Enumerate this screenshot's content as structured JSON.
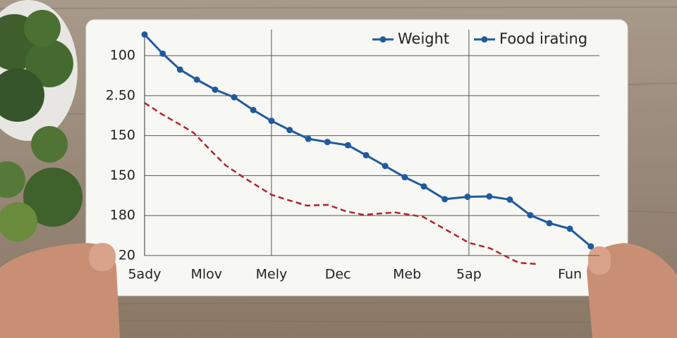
{
  "chart_data": {
    "type": "line",
    "xlim": [
      0,
      100
    ],
    "ylim": [
      -0.5,
      5.6
    ],
    "xticks": [
      {
        "value": 0,
        "label": "5ady"
      },
      {
        "value": 13.6,
        "label": "Mlov"
      },
      {
        "value": 27.9,
        "label": "Mely"
      },
      {
        "value": 42.5,
        "label": "Dec"
      },
      {
        "value": 57.7,
        "label": "Meb"
      },
      {
        "value": 71.3,
        "label": "5ap"
      },
      {
        "value": 93.5,
        "label": "Fun"
      }
    ],
    "xgrid": [
      27.9,
      71.3
    ],
    "yticks": [
      {
        "value": 0,
        "label": "20"
      },
      {
        "value": 1,
        "label": "180"
      },
      {
        "value": 2,
        "label": "150"
      },
      {
        "value": 3,
        "label": "150"
      },
      {
        "value": 4,
        "label": "2.50"
      },
      {
        "value": 5,
        "label": "100"
      }
    ],
    "grid": true,
    "legend": "top-right",
    "series": [
      {
        "name": "Weight",
        "color": "#1f5a9e",
        "legend_color": "#1f5a9e",
        "dashed": false,
        "markers": true,
        "x": [
          0,
          4.0,
          7.8,
          11.5,
          15.5,
          19.7,
          23.9,
          27.9,
          31.9,
          36.0,
          40.2,
          44.7,
          48.7,
          52.9,
          57.2,
          61.4,
          66.0,
          71.0,
          75.8,
          80.3,
          84.8,
          89.0,
          93.5,
          98.1
        ],
        "values": [
          5.53,
          5.05,
          4.65,
          4.4,
          4.15,
          3.96,
          3.64,
          3.37,
          3.14,
          2.92,
          2.84,
          2.76,
          2.51,
          2.24,
          1.96,
          1.73,
          1.41,
          1.47,
          1.48,
          1.4,
          1.01,
          0.81,
          0.67,
          0.23
        ]
      },
      {
        "name": "Food irating",
        "color": "#b0242c",
        "legend_color": "#1f5a9e",
        "dashed": true,
        "markers": false,
        "x": [
          0,
          3.9,
          8.5,
          10.9,
          14.7,
          17.8,
          21.7,
          27.9,
          31.8,
          35.7,
          40.3,
          44.2,
          48.1,
          55.0,
          61.2,
          65.9,
          71.3,
          76.0,
          79.8,
          82.2,
          86.0
        ],
        "values": [
          3.82,
          3.53,
          3.23,
          3.06,
          2.61,
          2.26,
          1.96,
          1.52,
          1.38,
          1.25,
          1.27,
          1.11,
          1.02,
          1.08,
          0.97,
          0.67,
          0.32,
          0.18,
          -0.04,
          -0.18,
          -0.21
        ]
      }
    ]
  }
}
